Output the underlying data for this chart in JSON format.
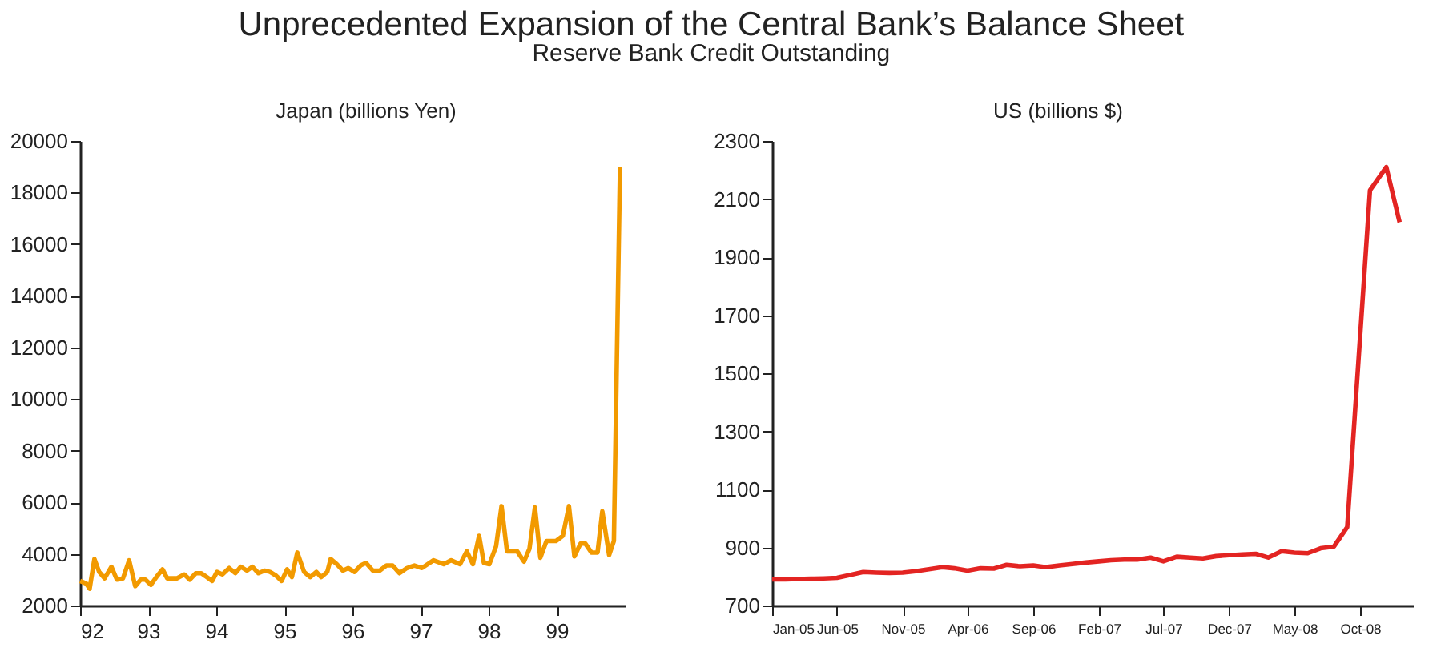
{
  "chart_data": [
    {
      "type": "line",
      "title": "Unprecedented Expansion of the Central Bank’s Balance Sheet",
      "subtitle": "Reserve Bank Credit Outstanding",
      "ylabel": "Japan (billions Yen)",
      "x": [
        92.0,
        92.09,
        92.14,
        92.21,
        92.28,
        92.36,
        92.46,
        92.54,
        92.63,
        92.72,
        92.81,
        92.89,
        92.96,
        93.04,
        93.12,
        93.21,
        93.28,
        93.42,
        93.53,
        93.61,
        93.7,
        93.78,
        93.86,
        93.94,
        94.01,
        94.09,
        94.19,
        94.28,
        94.36,
        94.45,
        94.53,
        94.62,
        94.71,
        94.79,
        94.88,
        94.96,
        95.04,
        95.11,
        95.19,
        95.29,
        95.38,
        95.47,
        95.54,
        95.63,
        95.68,
        95.77,
        95.86,
        95.94,
        96.03,
        96.12,
        96.2,
        96.3,
        96.4,
        96.5,
        96.59,
        96.69,
        96.8,
        96.91,
        97.02,
        97.19,
        97.34,
        97.45,
        97.58,
        97.68,
        97.77,
        97.86,
        97.93,
        98.01,
        98.11,
        98.19,
        98.27,
        98.42,
        98.52,
        98.6,
        98.68,
        98.76,
        98.85,
        98.99,
        99.09,
        99.18,
        99.26,
        99.35,
        99.42,
        99.51,
        99.6,
        99.67,
        99.77,
        99.84,
        99.93
      ],
      "series": [
        {
          "color": "#f29a00",
          "values": [
            2950,
            2850,
            2650,
            3800,
            3300,
            3050,
            3500,
            3000,
            3050,
            3750,
            2750,
            3000,
            3000,
            2800,
            3100,
            3400,
            3050,
            3050,
            3200,
            3000,
            3250,
            3250,
            3100,
            2950,
            3300,
            3200,
            3450,
            3250,
            3500,
            3350,
            3500,
            3250,
            3350,
            3300,
            3150,
            2950,
            3400,
            3100,
            4050,
            3300,
            3100,
            3300,
            3100,
            3300,
            3800,
            3600,
            3350,
            3450,
            3300,
            3550,
            3650,
            3350,
            3350,
            3550,
            3550,
            3250,
            3450,
            3550,
            3450,
            3750,
            3600,
            3750,
            3600,
            4100,
            3600,
            4700,
            3650,
            3600,
            4300,
            5850,
            4100,
            4100,
            3700,
            4200,
            5800,
            3850,
            4500,
            4500,
            4700,
            5850,
            3900,
            4400,
            4400,
            4050,
            4050,
            5650,
            3950,
            4500,
            19000
          ]
        }
      ],
      "xlim": [
        92,
        100
      ],
      "xticks": [
        92,
        93,
        94,
        95,
        96,
        97,
        98,
        99
      ],
      "ylim": [
        2000,
        20000
      ],
      "yticks": [
        2000,
        4000,
        6000,
        8000,
        10000,
        12000,
        14000,
        16000,
        18000,
        20000
      ],
      "grid": false,
      "marker": "none",
      "line_style": "solid"
    },
    {
      "type": "line",
      "ylabel": "US (billions $)",
      "x": [
        "2005-01-01",
        "2005-02-01",
        "2005-03-01",
        "2005-04-01",
        "2005-05-01",
        "2005-06-01",
        "2005-07-01",
        "2005-08-01",
        "2005-09-01",
        "2005-10-01",
        "2005-11-01",
        "2005-12-01",
        "2006-01-01",
        "2006-02-01",
        "2006-03-01",
        "2006-04-01",
        "2006-05-01",
        "2006-06-01",
        "2006-07-01",
        "2006-08-01",
        "2006-09-01",
        "2006-10-01",
        "2006-11-01",
        "2006-12-01",
        "2007-01-01",
        "2007-02-01",
        "2007-03-01",
        "2007-04-01",
        "2007-05-01",
        "2007-06-01",
        "2007-07-01",
        "2007-08-01",
        "2007-09-01",
        "2007-10-01",
        "2007-11-01",
        "2007-12-01",
        "2008-01-01",
        "2008-02-01",
        "2008-03-01",
        "2008-04-01",
        "2008-05-01",
        "2008-06-01",
        "2008-07-01",
        "2008-08-01",
        "2008-09-01",
        "2008-10-24",
        "2008-12-01",
        "2009-01-01"
      ],
      "series": [
        {
          "color": "#e32422",
          "values": [
            790,
            790,
            791,
            792,
            793,
            795,
            805,
            815,
            813,
            812,
            813,
            818,
            825,
            832,
            828,
            820,
            828,
            827,
            840,
            835,
            838,
            832,
            838,
            843,
            848,
            852,
            856,
            858,
            858,
            865,
            852,
            868,
            865,
            862,
            870,
            873,
            876,
            878,
            865,
            887,
            882,
            880,
            897,
            903,
            970,
            2130,
            2210,
            2020
          ]
        }
      ],
      "xlim": [
        "2005-01-01",
        "2009-02-01"
      ],
      "xticks": [
        {
          "value": "2005-01-01",
          "label": "Jan-05"
        },
        {
          "value": "2005-06-01",
          "label": "Jun-05"
        },
        {
          "value": "2005-11-01",
          "label": "Nov-05"
        },
        {
          "value": "2006-04-01",
          "label": "Apr-06"
        },
        {
          "value": "2006-09-01",
          "label": "Sep-06"
        },
        {
          "value": "2007-02-01",
          "label": "Feb-07"
        },
        {
          "value": "2007-07-01",
          "label": "Jul-07"
        },
        {
          "value": "2007-12-01",
          "label": "Dec-07"
        },
        {
          "value": "2008-05-01",
          "label": "May-08"
        },
        {
          "value": "2008-10-01",
          "label": "Oct-08"
        }
      ],
      "ylim": [
        700,
        2300
      ],
      "yticks": [
        700,
        900,
        1100,
        1300,
        1500,
        1700,
        1900,
        2100,
        2300
      ],
      "grid": false,
      "marker": "none",
      "line_style": "solid"
    }
  ]
}
